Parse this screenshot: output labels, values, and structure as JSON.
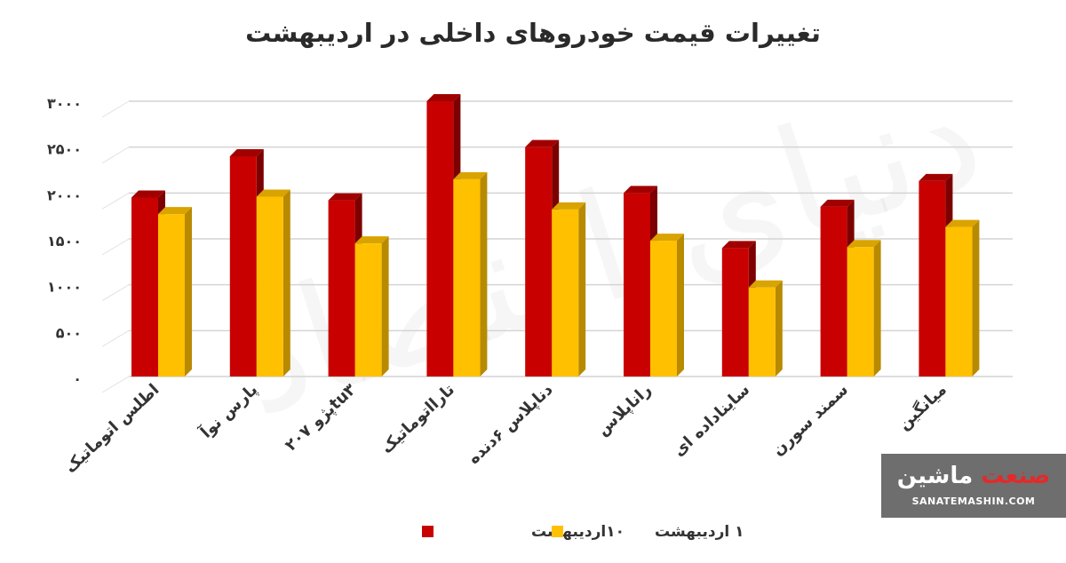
{
  "chart_data": {
    "type": "bar",
    "title": "تغییرات قیمت خودروهای داخلی در اردیبهشت",
    "categories": [
      "اطلس اتوماتیک",
      "پارس نوآ",
      "پژو ۲۰۷tu۳",
      "تارااتوماتیک",
      "دناپلاس ۶دنده",
      "راناپلاس",
      "سایناداده ای",
      "سمند سورن",
      "میانگین"
    ],
    "series": [
      {
        "name": "۱۰اردیبهشت",
        "color": "#c90000",
        "values": [
          1950,
          2400,
          1920,
          3000,
          2500,
          2000,
          1400,
          1850,
          2130
        ]
      },
      {
        "name": "۱ اردیبهشت",
        "color": "#ffc000",
        "values": [
          1770,
          1960,
          1450,
          2150,
          1820,
          1480,
          970,
          1410,
          1630
        ]
      }
    ],
    "yticks": [
      "۰",
      "۵۰۰",
      "۱۰۰۰",
      "۱۵۰۰",
      "۲۰۰۰",
      "۲۵۰۰",
      "۳۰۰۰"
    ],
    "ytick_values": [
      0,
      500,
      1000,
      1500,
      2000,
      2500,
      3000
    ],
    "ylim": [
      0,
      3100
    ],
    "grid": true,
    "legend_position": "bottom"
  },
  "watermark": "دنیای اقتصاد",
  "logo": {
    "word1": "صنعت",
    "word2": "ماشین",
    "subtitle": "SANATEMASHIN.COM"
  }
}
